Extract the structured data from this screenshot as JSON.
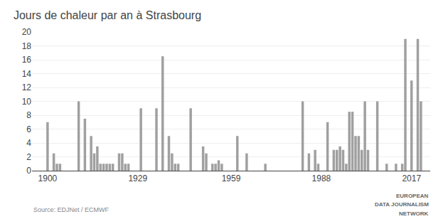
{
  "chart_data": {
    "type": "bar",
    "title": "Jours de chaleur par an à Strasbourg",
    "x": [
      1900,
      1901,
      1902,
      1903,
      1904,
      1905,
      1906,
      1907,
      1908,
      1909,
      1910,
      1911,
      1912,
      1913,
      1914,
      1915,
      1916,
      1917,
      1918,
      1919,
      1920,
      1921,
      1922,
      1923,
      1924,
      1925,
      1926,
      1927,
      1928,
      1929,
      1930,
      1931,
      1932,
      1933,
      1934,
      1935,
      1936,
      1937,
      1938,
      1939,
      1940,
      1941,
      1942,
      1943,
      1944,
      1945,
      1946,
      1947,
      1948,
      1949,
      1950,
      1951,
      1952,
      1953,
      1954,
      1955,
      1956,
      1957,
      1958,
      1959,
      1960,
      1961,
      1962,
      1963,
      1964,
      1965,
      1966,
      1967,
      1968,
      1969,
      1970,
      1971,
      1972,
      1973,
      1974,
      1975,
      1976,
      1977,
      1978,
      1979,
      1980,
      1981,
      1982,
      1983,
      1984,
      1985,
      1986,
      1987,
      1988,
      1989,
      1990,
      1991,
      1992,
      1993,
      1994,
      1995,
      1996,
      1997,
      1998,
      1999,
      2000,
      2001,
      2002,
      2003,
      2004,
      2005,
      2006,
      2007,
      2008,
      2009,
      2010,
      2011,
      2012,
      2013,
      2014,
      2015,
      2016,
      2017,
      2018,
      2019,
      2020
    ],
    "values": [
      7,
      0,
      2.5,
      1,
      1,
      0,
      0,
      0,
      0,
      0,
      10,
      0,
      7.5,
      0,
      5,
      2.5,
      3.5,
      1,
      1,
      1,
      1,
      1,
      0,
      2.5,
      2.5,
      1,
      1,
      0,
      0,
      0,
      9,
      0,
      0,
      0,
      0,
      9,
      0,
      16.5,
      0,
      5,
      2.5,
      1,
      1,
      0,
      0,
      0,
      9,
      0,
      0,
      0,
      3.5,
      2.5,
      0,
      1,
      1,
      1.5,
      1,
      0,
      0,
      0,
      0,
      5,
      0,
      0,
      2.5,
      0,
      0,
      0,
      0,
      0,
      1,
      0,
      0,
      0,
      0,
      0,
      0,
      0,
      0,
      0,
      0,
      0,
      10,
      0,
      2.5,
      0,
      3,
      1,
      0,
      0,
      7,
      0,
      3,
      3,
      3.5,
      3,
      1,
      8.5,
      8.5,
      5,
      5,
      3,
      10,
      3,
      0,
      0,
      10,
      0,
      0,
      1,
      0,
      0,
      1,
      0,
      1,
      19,
      0,
      13,
      0,
      19,
      10
    ],
    "color": "#a0a0a0",
    "xlim": [
      1895,
      2023
    ],
    "xticks": [
      1900,
      1929,
      1959,
      1988,
      2017
    ],
    "ylim": [
      0,
      20
    ],
    "yticks": [
      0,
      2,
      4,
      6,
      8,
      10,
      12,
      14,
      16,
      18,
      20
    ],
    "grid": true,
    "annotations": [
      "Source: EDJNet / ECMWF",
      "EUROPEAN",
      "DATA JOURNALISM",
      "NETWORK"
    ]
  }
}
